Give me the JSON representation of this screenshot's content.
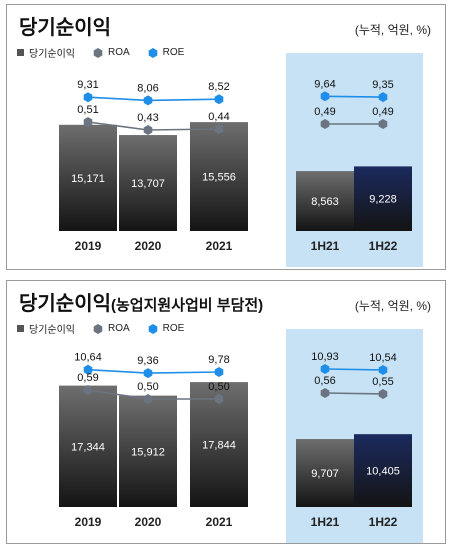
{
  "colors": {
    "bar_light": "#6e6e6e",
    "bar_dark": "#141414",
    "bar_half_top": "#1b2a5e",
    "roe": "#1f8ee8",
    "roa": "#6b7480",
    "highlight_bg": "#c6e2f4"
  },
  "panels": [
    {
      "title": "당기순이익",
      "subtitle": "",
      "unit": "(누적, 억원, %)",
      "legend": [
        "당기순이익",
        "ROA",
        "ROE"
      ],
      "chart_data": {
        "type": "bar",
        "title": "당기순이익",
        "categories": [
          "2019",
          "2020",
          "2021",
          "1H21",
          "1H22"
        ],
        "series": [
          {
            "name": "당기순이익",
            "type": "bar",
            "values": [
              15171,
              13707,
              15556,
              8563,
              9228
            ],
            "labels": [
              "15,171",
              "13,707",
              "15,556",
              "8,563",
              "9,228"
            ]
          },
          {
            "name": "ROA",
            "type": "line",
            "values": [
              0.51,
              0.43,
              0.44,
              0.49,
              0.49
            ],
            "labels": [
              "0,51",
              "0,43",
              "0,44",
              "0,49",
              "0,49"
            ]
          },
          {
            "name": "ROE",
            "type": "line",
            "values": [
              9.31,
              8.06,
              8.52,
              9.64,
              9.35
            ],
            "labels": [
              "9,31",
              "8,06",
              "8,52",
              "9,64",
              "9,35"
            ]
          }
        ],
        "ylim": [
          0,
          20000
        ]
      }
    },
    {
      "title": "당기순이익",
      "subtitle": "(농업지원사업비 부담전)",
      "unit": "(누적, 억원, %)",
      "legend": [
        "당기순이익",
        "ROA",
        "ROE"
      ],
      "chart_data": {
        "type": "bar",
        "title": "당기순이익(농업지원사업비 부담전)",
        "categories": [
          "2019",
          "2020",
          "2021",
          "1H21",
          "1H22"
        ],
        "series": [
          {
            "name": "당기순이익",
            "type": "bar",
            "values": [
              17344,
              15912,
              17844,
              9707,
              10405
            ],
            "labels": [
              "17,344",
              "15,912",
              "17,844",
              "9,707",
              "10,405"
            ]
          },
          {
            "name": "ROA",
            "type": "line",
            "values": [
              0.59,
              0.5,
              0.5,
              0.56,
              0.55
            ],
            "labels": [
              "0,59",
              "0,50",
              "0,50",
              "0,56",
              "0,55"
            ]
          },
          {
            "name": "ROE",
            "type": "line",
            "values": [
              10.64,
              9.36,
              9.78,
              10.93,
              10.54
            ],
            "labels": [
              "10,64",
              "9,36",
              "9,78",
              "10,93",
              "10,54"
            ]
          }
        ],
        "ylim": [
          0,
          20000
        ]
      }
    }
  ]
}
